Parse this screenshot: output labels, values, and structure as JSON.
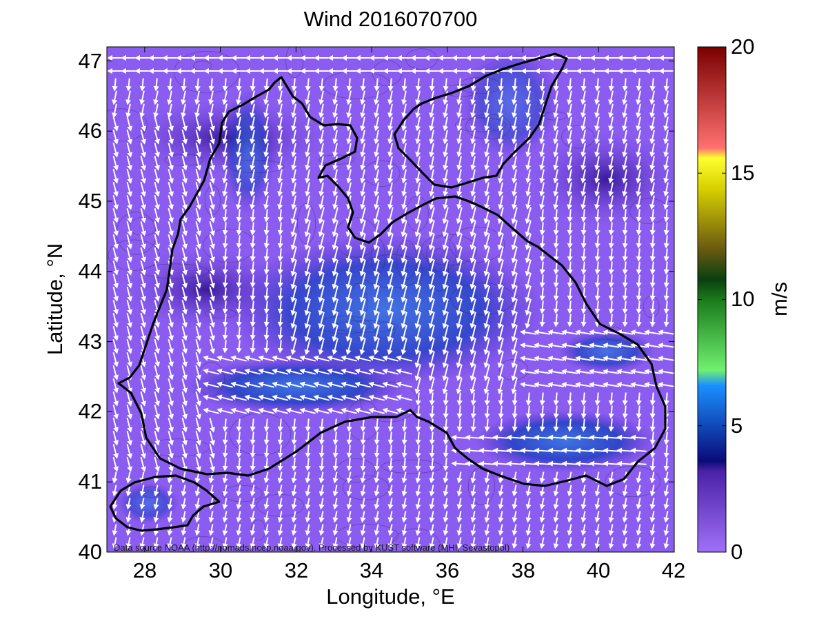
{
  "title": "Wind 2016070700",
  "x_axis": {
    "label": "Longitude, °E",
    "ticks": [
      "28",
      "30",
      "32",
      "34",
      "36",
      "38",
      "40",
      "42"
    ],
    "range": [
      27,
      42
    ]
  },
  "y_axis": {
    "label": "Latitude, °N",
    "ticks": [
      "40",
      "41",
      "42",
      "43",
      "44",
      "45",
      "46",
      "47"
    ],
    "range": [
      40,
      47.2
    ]
  },
  "colorbar": {
    "label": "m/s",
    "ticks": [
      "0",
      "5",
      "10",
      "15",
      "20"
    ],
    "range": [
      0,
      20
    ],
    "colors": [
      "#9a6cf5",
      "#6a3fd0",
      "#3a1e8a",
      "#0a0a80",
      "#0040c0",
      "#1a90ff",
      "#60e060",
      "#1e8a1e",
      "#0a4a0a",
      "#7a6a10",
      "#c8c800",
      "#ffff20",
      "#ff6060",
      "#d02020",
      "#800000"
    ]
  },
  "credit": "Data source NOAA (http://nomads.ncep.noaa.gov). Processed by KUST software (MHI, Sevastopol)",
  "colors": {
    "background_field": "#8a5cf0",
    "calm_field": "#5a2fc8",
    "strong_field": "#1a4fd0",
    "arrow": "#ffffff",
    "coast": "#000000"
  }
}
